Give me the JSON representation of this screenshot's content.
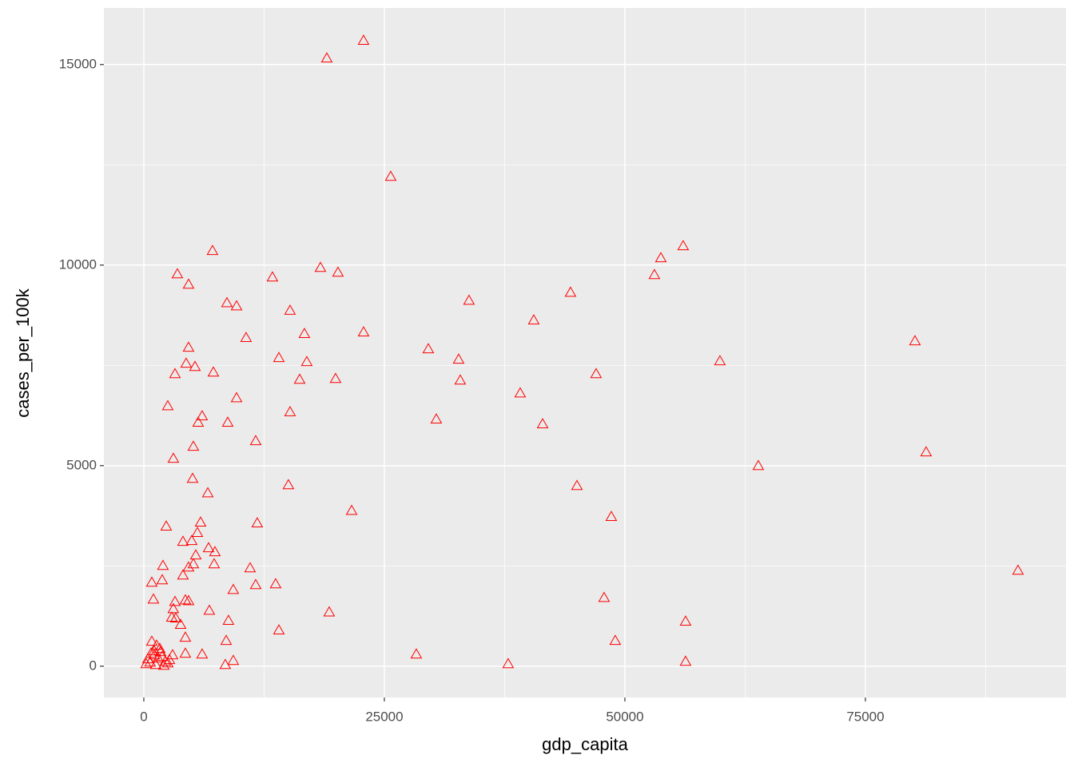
{
  "chart_data": {
    "type": "scatter",
    "x_label": "gdp_capita",
    "y_label": "cases_per_100k",
    "xlim": [
      -4150,
      95850
    ],
    "ylim": [
      -780,
      16410
    ],
    "xticks": [
      0,
      25000,
      50000,
      75000
    ],
    "yticks": [
      0,
      5000,
      10000,
      15000
    ],
    "x_minor_ticks": [
      12500,
      37500,
      62500,
      87500
    ],
    "y_minor_ticks": [
      2500,
      7500,
      12500
    ],
    "grid": true,
    "color": "#FF0000",
    "marker": "triangle-open",
    "x": [
      22840,
      19020,
      25660,
      7140,
      3490,
      4650,
      13370,
      18360,
      20180,
      8640,
      9640,
      15200,
      10630,
      16690,
      22840,
      4650,
      14040,
      16940,
      4400,
      5320,
      3240,
      7230,
      16200,
      19930,
      9640,
      2490,
      15200,
      6060,
      5650,
      8720,
      11630,
      5150,
      3070,
      5070,
      15030,
      6650,
      21600,
      2330,
      5900,
      11790,
      5570,
      4070,
      4980,
      6730,
      7390,
      5400,
      5150,
      7310,
      1990,
      4650,
      11050,
      4070,
      1910,
      830,
      11630,
      13700,
      9300,
      1000,
      3240,
      4320,
      4650,
      3070,
      6810,
      19270,
      2910,
      3320,
      3820,
      8800,
      14040,
      4320,
      8560,
      4320,
      6060,
      9300,
      8470,
      830,
      1330,
      1660,
      420,
      660,
      1080,
      1500,
      1910,
      2240,
      2660,
      2990,
      250,
      1250,
      2080,
      1740,
      1080,
      2490,
      750,
      28320,
      29570,
      30400,
      32720,
      32890,
      33800,
      37870,
      39120,
      40530,
      41450,
      44350,
      45020,
      47010,
      47840,
      48590,
      49000,
      53070,
      53740,
      56060,
      56310,
      56310,
      59880,
      63870,
      80150,
      81310,
      90860
    ],
    "values": [
      15600,
      15160,
      12210,
      10360,
      9780,
      9520,
      9700,
      9940,
      9820,
      9060,
      8980,
      8870,
      8190,
      8290,
      8330,
      7950,
      7690,
      7590,
      7550,
      7470,
      7290,
      7330,
      7150,
      7170,
      6690,
      6490,
      6340,
      6240,
      6080,
      6080,
      5620,
      5480,
      5180,
      4680,
      4520,
      4320,
      3880,
      3490,
      3590,
      3570,
      3330,
      3110,
      3130,
      2950,
      2850,
      2770,
      2550,
      2550,
      2510,
      2470,
      2450,
      2270,
      2150,
      2090,
      2030,
      2050,
      1910,
      1670,
      1610,
      1650,
      1630,
      1430,
      1390,
      1350,
      1220,
      1200,
      1040,
      1140,
      900,
      720,
      640,
      320,
      300,
      140,
      40,
      620,
      520,
      440,
      180,
      100,
      280,
      200,
      240,
      120,
      160,
      280,
      60,
      40,
      20,
      360,
      380,
      80,
      320,
      300,
      7910,
      6160,
      7650,
      7130,
      9120,
      60,
      6810,
      8630,
      6040,
      9320,
      4500,
      7290,
      1710,
      3730,
      640,
      9760,
      10180,
      10480,
      1120,
      120,
      7610,
      5000,
      8110,
      5340,
      2390
    ]
  }
}
